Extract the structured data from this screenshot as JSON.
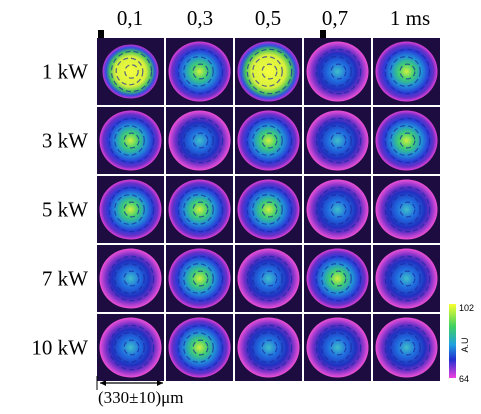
{
  "column_labels": [
    "0,1",
    "0,3",
    "0,5",
    "0,7",
    "1 ms"
  ],
  "row_labels": [
    "1 kW",
    "3 kW",
    "5 kW",
    "7 kW",
    "10 kW"
  ],
  "colorbar": {
    "max_label": "102",
    "axis_label": "A.U",
    "min_label": "64"
  },
  "scale_label": "(330±10)μm"
}
